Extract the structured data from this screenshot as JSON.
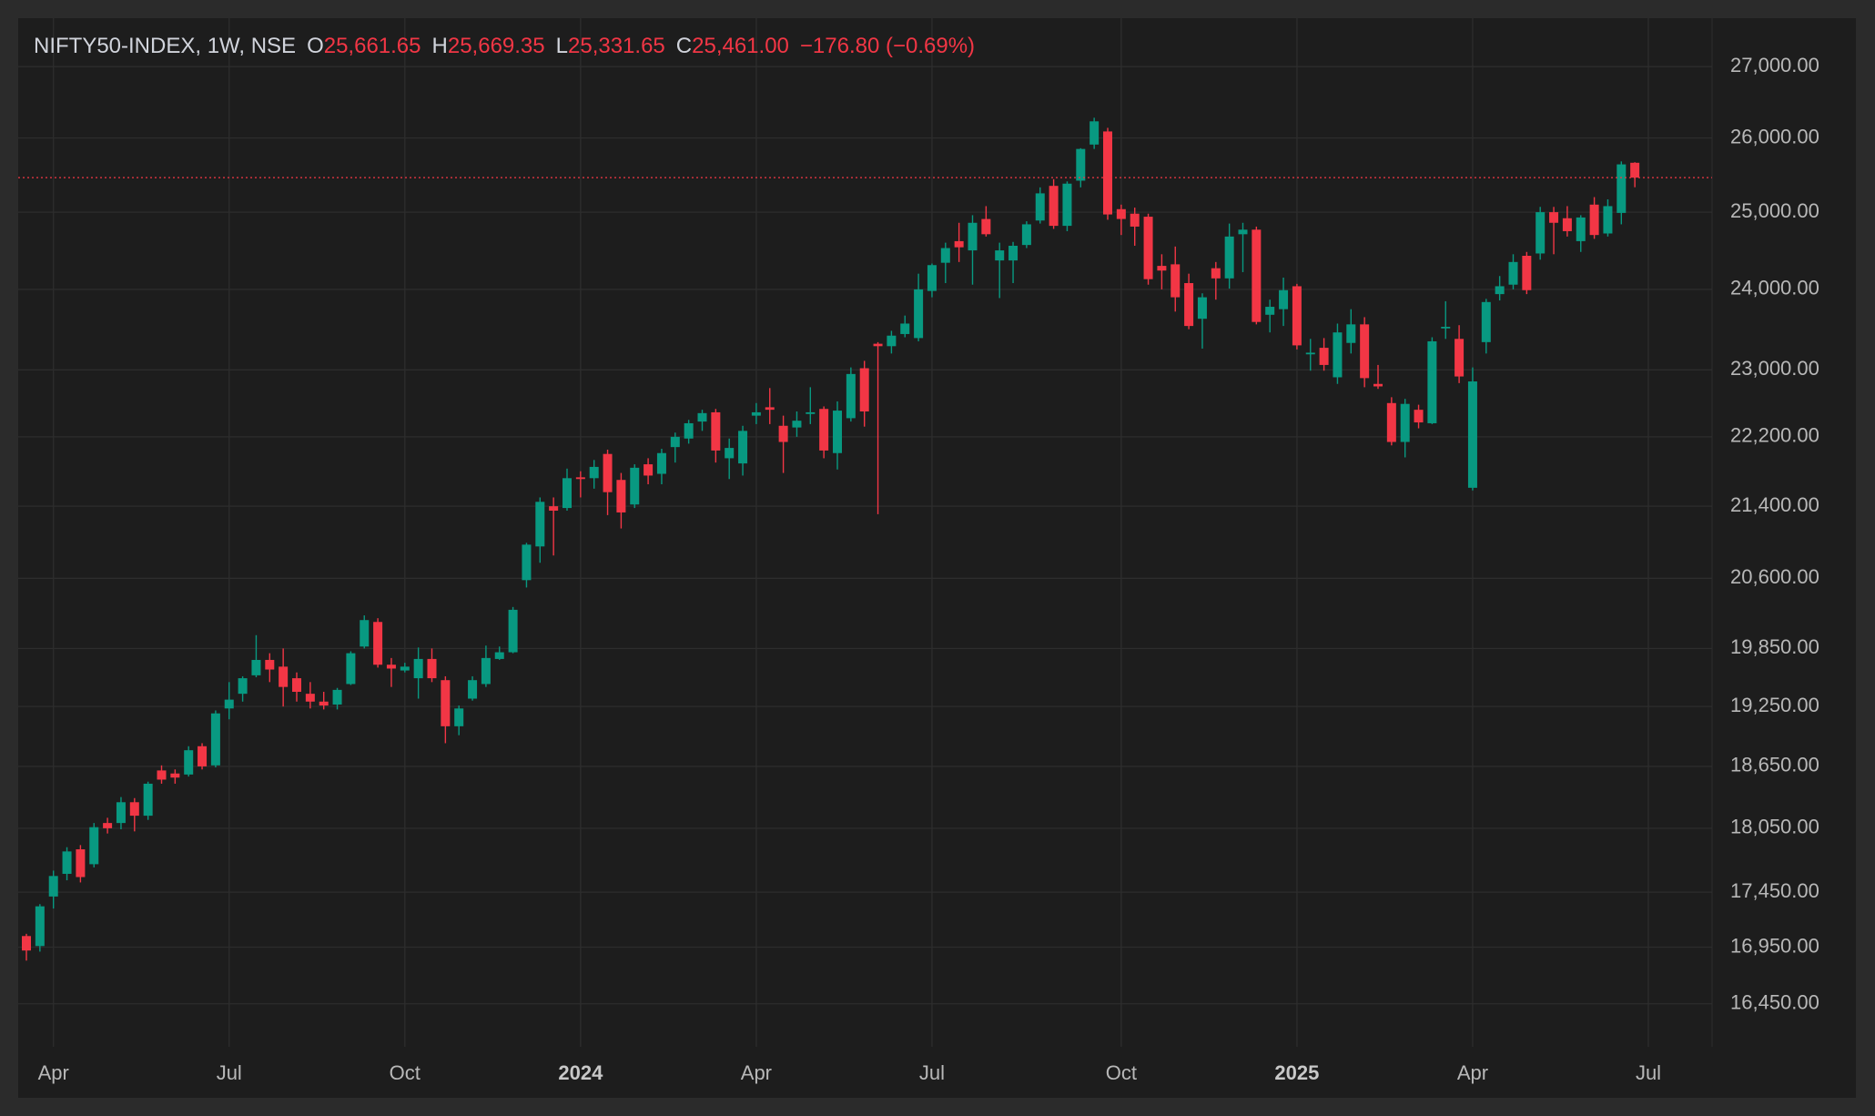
{
  "chart_data": {
    "type": "candlestick",
    "title": "NIFTY50-INDEX, 1W, NSE",
    "legend_items": [
      {
        "key": "O",
        "label": "25,661.65"
      },
      {
        "key": "H",
        "label": "25,669.35"
      },
      {
        "key": "L",
        "label": "25,331.65"
      },
      {
        "key": "C",
        "label": "25,461.00"
      }
    ],
    "change_label": "−176.80 (−0.69%)",
    "up_color": "#089981",
    "down_color": "#f23645",
    "log_scale": true,
    "grid": true,
    "categories": [
      null,
      null,
      "Apr",
      null,
      null,
      null,
      null,
      null,
      null,
      null,
      null,
      null,
      null,
      null,
      null,
      "Jul",
      null,
      null,
      null,
      null,
      null,
      null,
      null,
      null,
      null,
      null,
      null,
      null,
      "Oct",
      null,
      null,
      null,
      null,
      null,
      null,
      null,
      null,
      null,
      null,
      null,
      null,
      "2024",
      null,
      null,
      null,
      null,
      null,
      null,
      null,
      null,
      null,
      null,
      null,
      null,
      "Apr",
      null,
      null,
      null,
      null,
      null,
      null,
      null,
      null,
      null,
      null,
      null,
      null,
      "Jul",
      null,
      null,
      null,
      null,
      null,
      null,
      null,
      null,
      null,
      null,
      null,
      null,
      null,
      "Oct",
      null,
      null,
      null,
      null,
      null,
      null,
      null,
      null,
      null,
      null,
      null,
      null,
      "2025",
      null,
      null,
      null,
      null,
      null,
      null,
      null,
      null,
      null,
      null,
      null,
      null,
      "Apr",
      null,
      null,
      null,
      null,
      null,
      null,
      null,
      null,
      null,
      null,
      null,
      null,
      "Jul"
    ],
    "open": [
      17050,
      16960,
      17410,
      17620,
      17850,
      17710,
      18100,
      18100,
      18300,
      18170,
      18610,
      18580,
      18570,
      18850,
      18660,
      19230,
      19380,
      19570,
      19730,
      19660,
      19540,
      19380,
      19300,
      19270,
      19480,
      19870,
      20130,
      19680,
      19620,
      19540,
      19740,
      19520,
      19050,
      19330,
      19480,
      19740,
      19810,
      20580,
      20950,
      21400,
      21380,
      21730,
      21720,
      22000,
      21700,
      21420,
      21880,
      21770,
      22080,
      22180,
      22380,
      22490,
      21950,
      21890,
      22450,
      22550,
      22330,
      22310,
      22470,
      22530,
      22010,
      22420,
      23020,
      23320,
      23290,
      23440,
      23390,
      23980,
      24340,
      24620,
      24500,
      24910,
      24370,
      24370,
      24570,
      24890,
      25350,
      24820,
      25420,
      25910,
      26090,
      25040,
      24980,
      24940,
      24300,
      24320,
      24080,
      23630,
      24270,
      24140,
      24710,
      24770,
      23680,
      23750,
      24040,
      23190,
      23270,
      22910,
      23330,
      23560,
      22830,
      22600,
      22140,
      22520,
      22360,
      23510,
      23380,
      21610,
      23340,
      23940,
      24060,
      24430,
      24460,
      25000,
      24920,
      24620,
      25100,
      24720,
      24990,
      25661.65,
      null
    ],
    "high": [
      17070,
      17340,
      17650,
      17870,
      17890,
      18100,
      18150,
      18350,
      18340,
      18500,
      18660,
      18620,
      18850,
      18880,
      19210,
      19500,
      19560,
      19990,
      19800,
      19850,
      19600,
      19500,
      19400,
      19440,
      19820,
      20200,
      20170,
      19750,
      19700,
      19860,
      19850,
      19560,
      19260,
      19560,
      19880,
      19870,
      20290,
      20990,
      21500,
      21500,
      21830,
      21800,
      21930,
      22050,
      21780,
      21880,
      21950,
      22060,
      22250,
      22400,
      22520,
      22530,
      22180,
      22330,
      22600,
      22780,
      22450,
      22500,
      22790,
      22560,
      22620,
      23030,
      23110,
      23340,
      23480,
      23670,
      24200,
      24330,
      24600,
      24860,
      24960,
      25080,
      24600,
      24610,
      24880,
      25330,
      25440,
      25410,
      25860,
      26280,
      26140,
      25100,
      25060,
      24980,
      24450,
      24550,
      24200,
      23950,
      24350,
      24850,
      24860,
      24810,
      23870,
      24150,
      24070,
      23380,
      23390,
      23570,
      23750,
      23650,
      23060,
      22670,
      22650,
      22580,
      23400,
      23850,
      23550,
      23030,
      23880,
      24170,
      24450,
      24480,
      25070,
      25070,
      25080,
      24960,
      25200,
      25170,
      25680,
      25669.35,
      null
    ],
    "low": [
      16830,
      16910,
      17300,
      17560,
      17540,
      17680,
      18000,
      18040,
      18020,
      18130,
      18480,
      18480,
      18550,
      18620,
      18640,
      19120,
      19300,
      19550,
      19500,
      19250,
      19300,
      19230,
      19220,
      19220,
      19470,
      19850,
      19650,
      19450,
      19600,
      19330,
      19500,
      18880,
      18960,
      19310,
      19450,
      19730,
      19800,
      20500,
      20770,
      20850,
      21350,
      21500,
      21600,
      21300,
      21150,
      21380,
      21650,
      21650,
      21900,
      22120,
      22270,
      21900,
      21710,
      21750,
      22350,
      22350,
      21780,
      22200,
      22350,
      21950,
      21820,
      22380,
      22320,
      21310,
      23200,
      23400,
      23350,
      23900,
      24080,
      24350,
      24060,
      24680,
      23890,
      24080,
      24530,
      24850,
      24780,
      24750,
      25330,
      25850,
      24900,
      24700,
      24560,
      24060,
      24000,
      23720,
      23500,
      23260,
      23870,
      24010,
      24220,
      23560,
      23460,
      23540,
      23250,
      22990,
      22990,
      22830,
      23200,
      22790,
      22770,
      22100,
      21960,
      22300,
      22350,
      23380,
      22840,
      21580,
      23200,
      23860,
      24000,
      23940,
      24380,
      24450,
      24680,
      24480,
      24650,
      24680,
      24840,
      25331.65,
      null
    ],
    "close": [
      16920,
      17320,
      17600,
      17830,
      17590,
      18060,
      18050,
      18300,
      18170,
      18480,
      18520,
      18540,
      18810,
      18650,
      19180,
      19320,
      19540,
      19730,
      19630,
      19450,
      19400,
      19300,
      19260,
      19420,
      19800,
      20150,
      19680,
      19640,
      19660,
      19740,
      19540,
      19050,
      19230,
      19520,
      19750,
      19810,
      20260,
      20970,
      21450,
      21350,
      21720,
      21710,
      21850,
      21560,
      21330,
      21840,
      21750,
      22010,
      22200,
      22360,
      22480,
      22040,
      22070,
      22270,
      22490,
      22520,
      22140,
      22390,
      22490,
      22040,
      22510,
      22950,
      22500,
      23290,
      23420,
      23570,
      24000,
      24310,
      24530,
      24540,
      24860,
      24710,
      24500,
      24560,
      24840,
      25250,
      24820,
      25380,
      25850,
      26230,
      24970,
      24910,
      24810,
      24130,
      24240,
      23900,
      23540,
      23900,
      24140,
      24680,
      24770,
      23590,
      23780,
      23990,
      23300,
      23210,
      23060,
      23460,
      23560,
      22900,
      22800,
      22140,
      22590,
      22370,
      23350,
      23530,
      22920,
      22860,
      23840,
      24040,
      24350,
      23990,
      25000,
      24860,
      24750,
      24930,
      24700,
      25080,
      25640,
      25461,
      null
    ],
    "ylim": [
      16080,
      27700
    ],
    "yticks": [
      {
        "value": 16450,
        "label": "16,450.00"
      },
      {
        "value": 16950,
        "label": "16,950.00"
      },
      {
        "value": 17450,
        "label": "17,450.00"
      },
      {
        "value": 18050,
        "label": "18,050.00"
      },
      {
        "value": 18650,
        "label": "18,650.00"
      },
      {
        "value": 19250,
        "label": "19,250.00"
      },
      {
        "value": 19850,
        "label": "19,850.00"
      },
      {
        "value": 20600,
        "label": "20,600.00"
      },
      {
        "value": 21400,
        "label": "21,400.00"
      },
      {
        "value": 22200,
        "label": "22,200.00"
      },
      {
        "value": 23000,
        "label": "23,000.00"
      },
      {
        "value": 24000,
        "label": "24,000.00"
      },
      {
        "value": 25000,
        "label": "25,000.00"
      },
      {
        "value": 26000,
        "label": "26,000.00"
      },
      {
        "value": 27000,
        "label": "27,000.00"
      }
    ]
  }
}
